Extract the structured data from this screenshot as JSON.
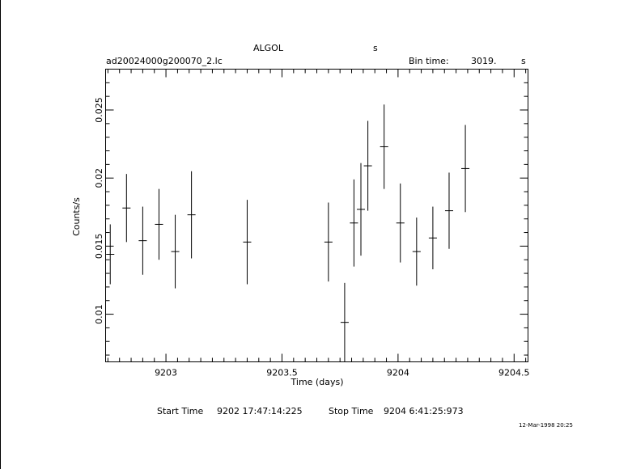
{
  "header": {
    "object": "ALGOL",
    "object_unit": "s",
    "filename": "ad20024000g200070_2.lc",
    "bin_label": "Bin time:",
    "bin_value": "3019.",
    "bin_unit": "s"
  },
  "footer": {
    "start_label": "Start Time",
    "start_value": "9202  17:47:14:225",
    "stop_label": "Stop Time",
    "stop_value": "9204   6:41:25:973",
    "date_stamp": "12-Mar-1998 20:25"
  },
  "chart_data": {
    "type": "scatter",
    "title": "ALGOL",
    "xlabel": "Time (days)",
    "ylabel": "Counts/s",
    "xlim": [
      9202.74,
      9204.56
    ],
    "ylim": [
      0.0065,
      0.028
    ],
    "x_ticks": [
      9203,
      9203.5,
      9204,
      9204.5
    ],
    "x_tick_labels": [
      "9203",
      "9203.5",
      "9204",
      "9204.5"
    ],
    "y_ticks": [
      0.01,
      0.015,
      0.02,
      0.025
    ],
    "y_tick_labels": [
      "0.01",
      "0.015",
      "0.02",
      "0.025"
    ],
    "grid": false,
    "series": [
      {
        "x": [
          9202.76,
          9202.83,
          9202.9,
          9202.97,
          9203.04,
          9203.11,
          9203.35,
          9203.7,
          9203.77,
          9203.81,
          9203.84,
          9203.87,
          9203.94,
          9204.01,
          9204.08,
          9204.15,
          9204.22,
          9204.29
        ],
        "y": [
          0.0144,
          0.0178,
          0.0154,
          0.0166,
          0.0146,
          0.0173,
          0.0153,
          0.0153,
          0.0094,
          0.0167,
          0.0177,
          0.0209,
          0.0223,
          0.0167,
          0.0146,
          0.0156,
          0.0176,
          0.0207
        ],
        "yerr": [
          0.0022,
          0.0025,
          0.0025,
          0.0026,
          0.0027,
          0.0032,
          0.0031,
          0.0029,
          0.0029,
          0.0032,
          0.0034,
          0.0033,
          0.0031,
          0.0029,
          0.0025,
          0.0023,
          0.0028,
          0.0032
        ],
        "xerr": [
          0.0175,
          0.0175,
          0.0175,
          0.0175,
          0.0175,
          0.0175,
          0.0175,
          0.0175,
          0.0175,
          0.0175,
          0.0175,
          0.0175,
          0.0175,
          0.0175,
          0.0175,
          0.0175,
          0.0175,
          0.0175
        ]
      }
    ]
  }
}
